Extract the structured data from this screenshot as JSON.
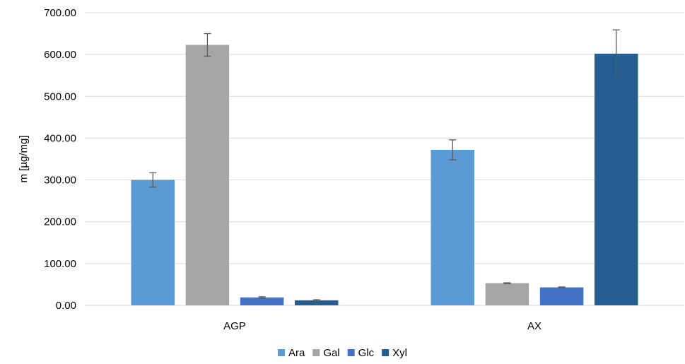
{
  "chart_data": {
    "type": "bar",
    "title": "",
    "xlabel": "",
    "ylabel": "m [µg/mg]",
    "ylim": [
      0,
      700
    ],
    "y_ticks": [
      "0.00",
      "100.00",
      "200.00",
      "300.00",
      "400.00",
      "500.00",
      "600.00",
      "700.00"
    ],
    "grid": true,
    "legend_position": "bottom",
    "categories": [
      "AGP",
      "AX"
    ],
    "series": [
      {
        "name": "Ara",
        "color": "#5b9bd5",
        "values": [
          300,
          372
        ],
        "errors": [
          17,
          24
        ]
      },
      {
        "name": "Gal",
        "color": "#a5a5a5",
        "values": [
          623,
          53
        ],
        "errors": [
          27,
          1
        ]
      },
      {
        "name": "Glc",
        "color": "#4472c4",
        "values": [
          19,
          43
        ],
        "errors": [
          1.5,
          1
        ]
      },
      {
        "name": "Xyl",
        "color": "#255e91",
        "values": [
          12,
          602
        ],
        "errors": [
          1.5,
          57
        ]
      }
    ]
  }
}
